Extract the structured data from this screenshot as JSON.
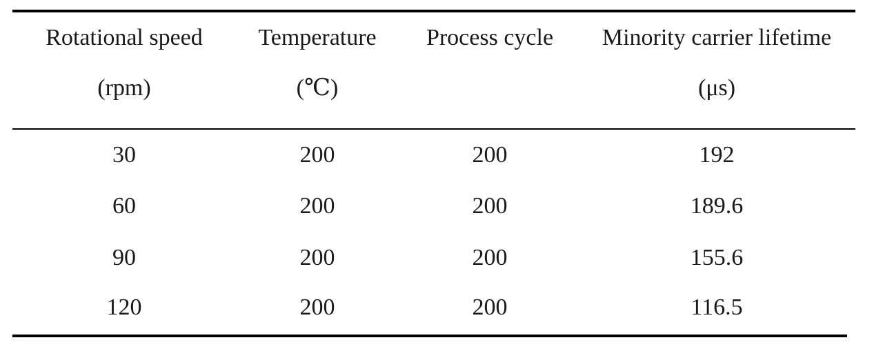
{
  "table": {
    "headers": [
      {
        "line1": "Rotational speed",
        "line2": "(rpm)"
      },
      {
        "line1": "Temperature",
        "line2": "(℃)"
      },
      {
        "line1": "Process cycle",
        "line2": ""
      },
      {
        "line1": "Minority carrier lifetime",
        "line2": "(μs)"
      }
    ],
    "rows": [
      [
        "30",
        "200",
        "200",
        "192"
      ],
      [
        "60",
        "200",
        "200",
        "189.6"
      ],
      [
        "90",
        "200",
        "200",
        "155.6"
      ],
      [
        "120",
        "200",
        "200",
        "116.5"
      ]
    ]
  },
  "chart_data": {
    "type": "table",
    "columns": [
      "Rotational speed (rpm)",
      "Temperature (℃)",
      "Process cycle",
      "Minority carrier lifetime (μs)"
    ],
    "rows": [
      [
        30,
        200,
        200,
        192
      ],
      [
        60,
        200,
        200,
        189.6
      ],
      [
        90,
        200,
        200,
        155.6
      ],
      [
        120,
        200,
        200,
        116.5
      ]
    ]
  }
}
